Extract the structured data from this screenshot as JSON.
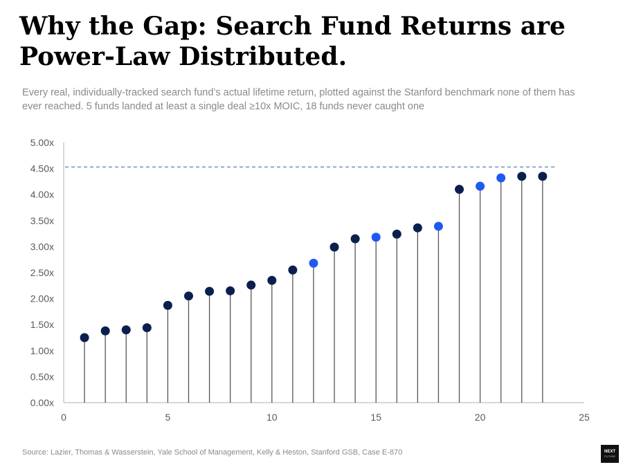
{
  "header": {
    "title": "Why the Gap: Search Fund Returns are Power-Law Distributed.",
    "subtitle": "Every real, individually-tracked search fund’s actual lifetime return, plotted against the Stanford benchmark none of them has ever reached. 5 funds landed at least a single deal ≥10x MOIC, 18 funds never caught one"
  },
  "footer": {
    "source": "Source: Lazier, Thomas & Wasserstein, Yale School of Management, Kelly & Heston, Stanford GSB, Case E-870",
    "logo_line1": "NEXT",
    "logo_line2": "FUTURE"
  },
  "colors": {
    "standard_point": "#0b1f4f",
    "highlight_point": "#1f5af0",
    "stem": "#555555",
    "benchmark_line": "#5b7fb5",
    "axis": "#bfbfbf"
  },
  "chart_data": {
    "type": "scatter",
    "title": "",
    "xlabel": "",
    "ylabel": "",
    "xlim": [
      0,
      25
    ],
    "ylim": [
      0,
      5
    ],
    "xticks": [
      0,
      5,
      10,
      15,
      20,
      25
    ],
    "xtick_labels": [
      "0",
      "5",
      "10",
      "15",
      "20",
      "25"
    ],
    "yticks": [
      0,
      0.5,
      1,
      1.5,
      2,
      2.5,
      3,
      3.5,
      4,
      4.5,
      5
    ],
    "ytick_labels": [
      "0.00x",
      "0.50x",
      "1.00x",
      "1.50x",
      "2.00x",
      "2.50x",
      "3.00x",
      "3.50x",
      "4.00x",
      "4.50x",
      "5.00x"
    ],
    "benchmark": 4.53,
    "grid": false,
    "x": [
      1,
      2,
      3,
      4,
      5,
      6,
      7,
      8,
      9,
      10,
      11,
      12,
      13,
      14,
      15,
      16,
      17,
      18,
      19,
      20,
      21,
      22,
      23
    ],
    "y": [
      1.25,
      1.38,
      1.4,
      1.44,
      1.87,
      2.05,
      2.14,
      2.15,
      2.26,
      2.35,
      2.55,
      2.68,
      2.99,
      3.15,
      3.18,
      3.24,
      3.36,
      3.39,
      4.1,
      4.16,
      4.32,
      4.35,
      4.35
    ],
    "highlight": [
      false,
      false,
      false,
      false,
      false,
      false,
      false,
      false,
      false,
      false,
      false,
      true,
      false,
      false,
      true,
      false,
      false,
      true,
      false,
      true,
      true,
      false,
      false
    ]
  }
}
